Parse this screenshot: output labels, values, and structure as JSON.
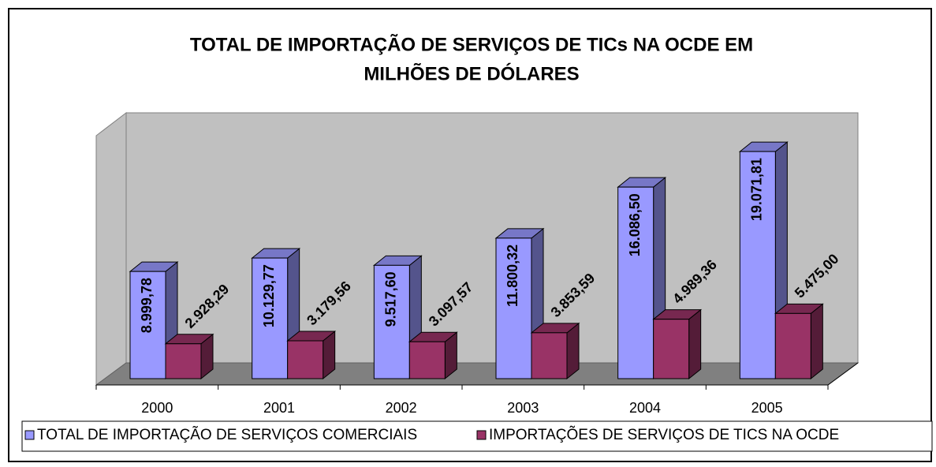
{
  "chart_data": {
    "type": "bar3d",
    "title": [
      "TOTAL DE IMPORTAÇÃO DE SERVIÇOS DE TICs NA OCDE EM",
      "MILHÕES DE DÓLARES"
    ],
    "categories": [
      "2000",
      "2001",
      "2002",
      "2003",
      "2004",
      "2005"
    ],
    "ylim": [
      0,
      21000
    ],
    "legend": "bottom",
    "series": [
      {
        "name": "TOTAL DE IMPORTAÇÃO DE SERVIÇOS COMERCIAIS",
        "color": "#9999ff",
        "values": [
          8999.78,
          10129.77,
          9517.6,
          11800.32,
          16086.5,
          19071.81
        ],
        "value_labels": [
          "8.999,78",
          "10.129,77",
          "9.517,60",
          "11.800,32",
          "16.086,50",
          "19.071,81"
        ]
      },
      {
        "name": "IMPORTAÇÕES DE SERVIÇOS DE TICS NA OCDE",
        "color": "#993366",
        "values": [
          2928.29,
          3179.56,
          3097.57,
          3853.59,
          4989.36,
          5475.0
        ],
        "value_labels": [
          "2.928,29",
          "3.179,56",
          "3.097,57",
          "3.853,59",
          "4.989,36",
          "5.475,00"
        ]
      }
    ]
  }
}
